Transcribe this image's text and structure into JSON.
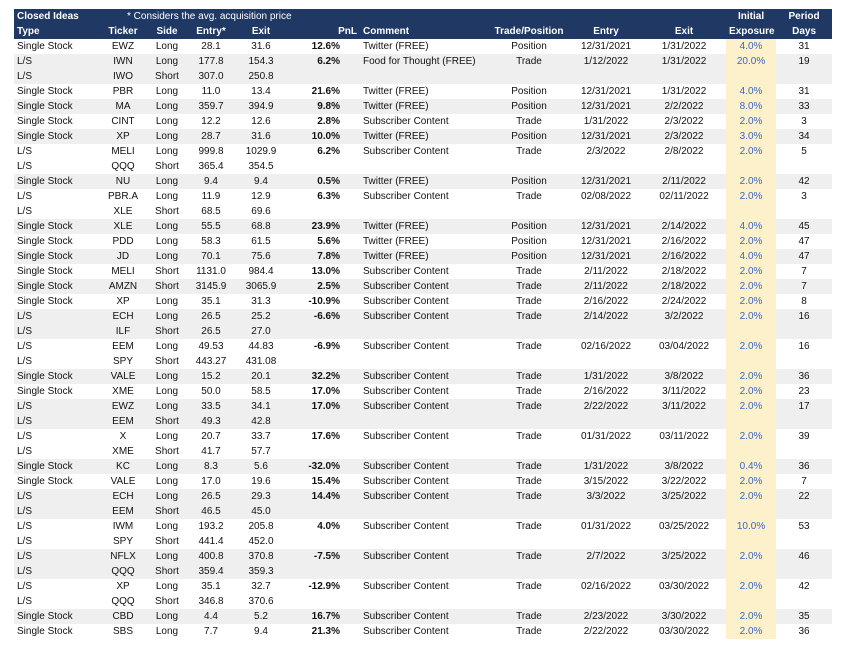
{
  "header": {
    "title": "Closed Ideas",
    "note": "* Considers the avg. acquisition price",
    "exposure_top": "Initial",
    "days_top": "Period"
  },
  "columns": [
    "Type",
    "Ticker",
    "Side",
    "Entry*",
    "Exit",
    "PnL",
    "Comment",
    "Trade/Position",
    "Entry",
    "Exit",
    "Exposure",
    "Days"
  ],
  "rows": [
    [
      "Single Stock",
      "EWZ",
      "Long",
      "28.1",
      "31.6",
      "12.6%",
      "Twitter (FREE)",
      "Position",
      "12/31/2021",
      "1/31/2022",
      "4.0%",
      "31"
    ],
    [
      "L/S",
      "IWN",
      "Long",
      "177.8",
      "154.3",
      "6.2%",
      "Food for Thought (FREE)",
      "Trade",
      "1/12/2022",
      "1/31/2022",
      "20.0%",
      "19"
    ],
    [
      "L/S",
      "IWO",
      "Short",
      "307.0",
      "250.8"
    ],
    [
      "Single Stock",
      "PBR",
      "Long",
      "11.0",
      "13.4",
      "21.6%",
      "Twitter (FREE)",
      "Position",
      "12/31/2021",
      "1/31/2022",
      "4.0%",
      "31"
    ],
    [
      "Single Stock",
      "MA",
      "Long",
      "359.7",
      "394.9",
      "9.8%",
      "Twitter (FREE)",
      "Position",
      "12/31/2021",
      "2/2/2022",
      "8.0%",
      "33"
    ],
    [
      "Single Stock",
      "CINT",
      "Long",
      "12.2",
      "12.6",
      "2.8%",
      "Subscriber Content",
      "Trade",
      "1/31/2022",
      "2/3/2022",
      "2.0%",
      "3"
    ],
    [
      "Single Stock",
      "XP",
      "Long",
      "28.7",
      "31.6",
      "10.0%",
      "Twitter (FREE)",
      "Position",
      "12/31/2021",
      "2/3/2022",
      "3.0%",
      "34"
    ],
    [
      "L/S",
      "MELI",
      "Long",
      "999.8",
      "1029.9",
      "6.2%",
      "Subscriber Content",
      "Trade",
      "2/3/2022",
      "2/8/2022",
      "2.0%",
      "5"
    ],
    [
      "L/S",
      "QQQ",
      "Short",
      "365.4",
      "354.5"
    ],
    [
      "Single Stock",
      "NU",
      "Long",
      "9.4",
      "9.4",
      "0.5%",
      "Twitter (FREE)",
      "Position",
      "12/31/2021",
      "2/11/2022",
      "2.0%",
      "42"
    ],
    [
      "L/S",
      "PBR.A",
      "Long",
      "11.9",
      "12.9",
      "6.3%",
      "Subscriber Content",
      "Trade",
      "02/08/2022",
      "02/11/2022",
      "2.0%",
      "3"
    ],
    [
      "L/S",
      "XLE",
      "Short",
      "68.5",
      "69.6"
    ],
    [
      "Single Stock",
      "XLE",
      "Long",
      "55.5",
      "68.8",
      "23.9%",
      "Twitter (FREE)",
      "Position",
      "12/31/2021",
      "2/14/2022",
      "4.0%",
      "45"
    ],
    [
      "Single Stock",
      "PDD",
      "Long",
      "58.3",
      "61.5",
      "5.6%",
      "Twitter (FREE)",
      "Position",
      "12/31/2021",
      "2/16/2022",
      "2.0%",
      "47"
    ],
    [
      "Single Stock",
      "JD",
      "Long",
      "70.1",
      "75.6",
      "7.8%",
      "Twitter (FREE)",
      "Position",
      "12/31/2021",
      "2/16/2022",
      "4.0%",
      "47"
    ],
    [
      "Single Stock",
      "MELI",
      "Short",
      "1131.0",
      "984.4",
      "13.0%",
      "Subscriber Content",
      "Trade",
      "2/11/2022",
      "2/18/2022",
      "2.0%",
      "7"
    ],
    [
      "Single Stock",
      "AMZN",
      "Short",
      "3145.9",
      "3065.9",
      "2.5%",
      "Subscriber Content",
      "Trade",
      "2/11/2022",
      "2/18/2022",
      "2.0%",
      "7"
    ],
    [
      "Single Stock",
      "XP",
      "Long",
      "35.1",
      "31.3",
      "-10.9%",
      "Subscriber Content",
      "Trade",
      "2/16/2022",
      "2/24/2022",
      "2.0%",
      "8"
    ],
    [
      "L/S",
      "ECH",
      "Long",
      "26.5",
      "25.2",
      "-6.6%",
      "Subscriber Content",
      "Trade",
      "2/14/2022",
      "3/2/2022",
      "2.0%",
      "16"
    ],
    [
      "L/S",
      "ILF",
      "Short",
      "26.5",
      "27.0"
    ],
    [
      "L/S",
      "EEM",
      "Long",
      "49.53",
      "44.83",
      "-6.9%",
      "Subscriber Content",
      "Trade",
      "02/16/2022",
      "03/04/2022",
      "2.0%",
      "16"
    ],
    [
      "L/S",
      "SPY",
      "Short",
      "443.27",
      "431.08"
    ],
    [
      "Single Stock",
      "VALE",
      "Long",
      "15.2",
      "20.1",
      "32.2%",
      "Subscriber Content",
      "Trade",
      "1/31/2022",
      "3/8/2022",
      "2.0%",
      "36"
    ],
    [
      "Single Stock",
      "XME",
      "Long",
      "50.0",
      "58.5",
      "17.0%",
      "Subscriber Content",
      "Trade",
      "2/16/2022",
      "3/11/2022",
      "2.0%",
      "23"
    ],
    [
      "L/S",
      "EWZ",
      "Long",
      "33.5",
      "34.1",
      "17.0%",
      "Subscriber Content",
      "Trade",
      "2/22/2022",
      "3/11/2022",
      "2.0%",
      "17"
    ],
    [
      "L/S",
      "EEM",
      "Short",
      "49.3",
      "42.8"
    ],
    [
      "L/S",
      "X",
      "Long",
      "20.7",
      "33.7",
      "17.6%",
      "Subscriber Content",
      "Trade",
      "01/31/2022",
      "03/11/2022",
      "2.0%",
      "39"
    ],
    [
      "L/S",
      "XME",
      "Short",
      "41.7",
      "57.7"
    ],
    [
      "Single Stock",
      "KC",
      "Long",
      "8.3",
      "5.6",
      "-32.0%",
      "Subscriber Content",
      "Trade",
      "1/31/2022",
      "3/8/2022",
      "0.4%",
      "36"
    ],
    [
      "Single Stock",
      "VALE",
      "Long",
      "17.0",
      "19.6",
      "15.4%",
      "Subscriber Content",
      "Trade",
      "3/15/2022",
      "3/22/2022",
      "2.0%",
      "7"
    ],
    [
      "L/S",
      "ECH",
      "Long",
      "26.5",
      "29.3",
      "14.4%",
      "Subscriber Content",
      "Trade",
      "3/3/2022",
      "3/25/2022",
      "2.0%",
      "22"
    ],
    [
      "L/S",
      "EEM",
      "Short",
      "46.5",
      "45.0"
    ],
    [
      "L/S",
      "IWM",
      "Long",
      "193.2",
      "205.8",
      "4.0%",
      "Subscriber Content",
      "Trade",
      "01/31/2022",
      "03/25/2022",
      "10.0%",
      "53"
    ],
    [
      "L/S",
      "SPY",
      "Short",
      "441.4",
      "452.0"
    ],
    [
      "L/S",
      "NFLX",
      "Long",
      "400.8",
      "370.8",
      "-7.5%",
      "Subscriber Content",
      "Trade",
      "2/7/2022",
      "3/25/2022",
      "2.0%",
      "46"
    ],
    [
      "L/S",
      "QQQ",
      "Short",
      "359.4",
      "359.3"
    ],
    [
      "L/S",
      "XP",
      "Long",
      "35.1",
      "32.7",
      "-12.9%",
      "Subscriber Content",
      "Trade",
      "02/16/2022",
      "03/30/2022",
      "2.0%",
      "42"
    ],
    [
      "L/S",
      "QQQ",
      "Short",
      "346.8",
      "370.6"
    ],
    [
      "Single Stock",
      "CBD",
      "Long",
      "4.4",
      "5.2",
      "16.7%",
      "Subscriber Content",
      "Trade",
      "2/23/2022",
      "3/30/2022",
      "2.0%",
      "35"
    ],
    [
      "Single Stock",
      "SBS",
      "Long",
      "7.7",
      "9.4",
      "21.3%",
      "Subscriber Content",
      "Trade",
      "2/22/2022",
      "03/30/2022",
      "2.0%",
      "36"
    ]
  ]
}
